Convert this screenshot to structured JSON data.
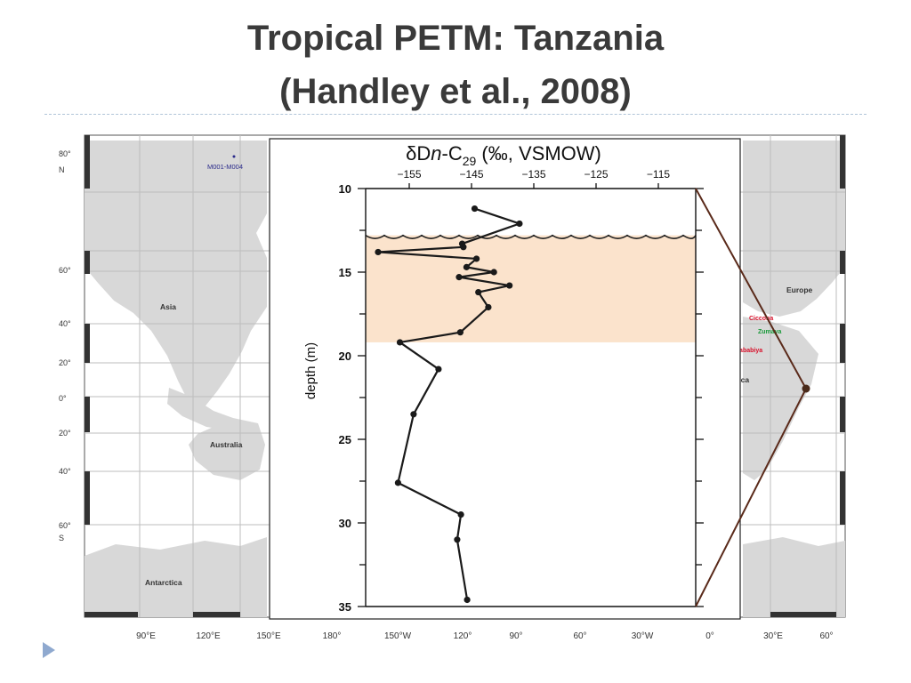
{
  "slide": {
    "title_line1": "Tropical PETM: Tanzania",
    "title_line2": "(Handley et al., 2008)"
  },
  "map": {
    "lat_labels": [
      "80°",
      "N",
      "60°",
      "40°",
      "20°",
      "0°",
      "20°",
      "40°",
      "60°",
      "S"
    ],
    "lon_labels": [
      "90°E",
      "120°E",
      "150°E",
      "180°",
      "150°W",
      "120°",
      "90°",
      "60°",
      "30°W",
      "0°",
      "30°E",
      "60°"
    ],
    "region_labels": [
      "Asia",
      "Australia",
      "Antarctica",
      "Europe",
      "Africa"
    ],
    "legend_label": "M001-M004",
    "site_labels": [
      "Ciccona",
      "Zumaya",
      "Dababiya"
    ],
    "site_colors": [
      "#d8102a",
      "#1a9a3a",
      "#d8102a"
    ],
    "site_marker_color": "#4a2a1a",
    "land_color": "#d8d8d8"
  },
  "chart_data": {
    "type": "line",
    "title": "δDn-C29 (‰, VSMOW)",
    "title_parts": {
      "main": "δD",
      "italic": "n",
      "mid": "-C",
      "sub": "29",
      "tail": " (‰, VSMOW)"
    },
    "xlabel": "",
    "ylabel": "depth (m)",
    "xlim": [
      -162,
      -109
    ],
    "ylim": [
      10,
      35
    ],
    "x_ticks": [
      -155,
      -145,
      -135,
      -125,
      -115
    ],
    "y_ticks": [
      10,
      15,
      20,
      25,
      30,
      35
    ],
    "y_inverted": true,
    "shaded_interval": {
      "from_depth": 12.8,
      "to_depth": 19.2,
      "color": "#fbe3cc"
    },
    "unconformity_depth": 12.8,
    "series": [
      {
        "color": "#1a1a1a",
        "points": [
          {
            "x": -144.5,
            "y": 11.2
          },
          {
            "x": -137.3,
            "y": 12.1
          },
          {
            "x": -146.5,
            "y": 13.3
          },
          {
            "x": -146.3,
            "y": 13.5
          },
          {
            "x": -160.0,
            "y": 13.8
          },
          {
            "x": -144.2,
            "y": 14.2
          },
          {
            "x": -145.8,
            "y": 14.7
          },
          {
            "x": -141.4,
            "y": 15.0
          },
          {
            "x": -147.0,
            "y": 15.3
          },
          {
            "x": -138.9,
            "y": 15.8
          },
          {
            "x": -143.9,
            "y": 16.2
          },
          {
            "x": -142.3,
            "y": 17.1
          },
          {
            "x": -146.8,
            "y": 18.6
          },
          {
            "x": -156.5,
            "y": 19.2
          },
          {
            "x": -150.3,
            "y": 20.8
          },
          {
            "x": -154.3,
            "y": 23.5
          },
          {
            "x": -156.8,
            "y": 27.6
          },
          {
            "x": -146.7,
            "y": 29.5
          },
          {
            "x": -147.3,
            "y": 31.0
          },
          {
            "x": -145.7,
            "y": 34.6
          }
        ]
      }
    ]
  }
}
